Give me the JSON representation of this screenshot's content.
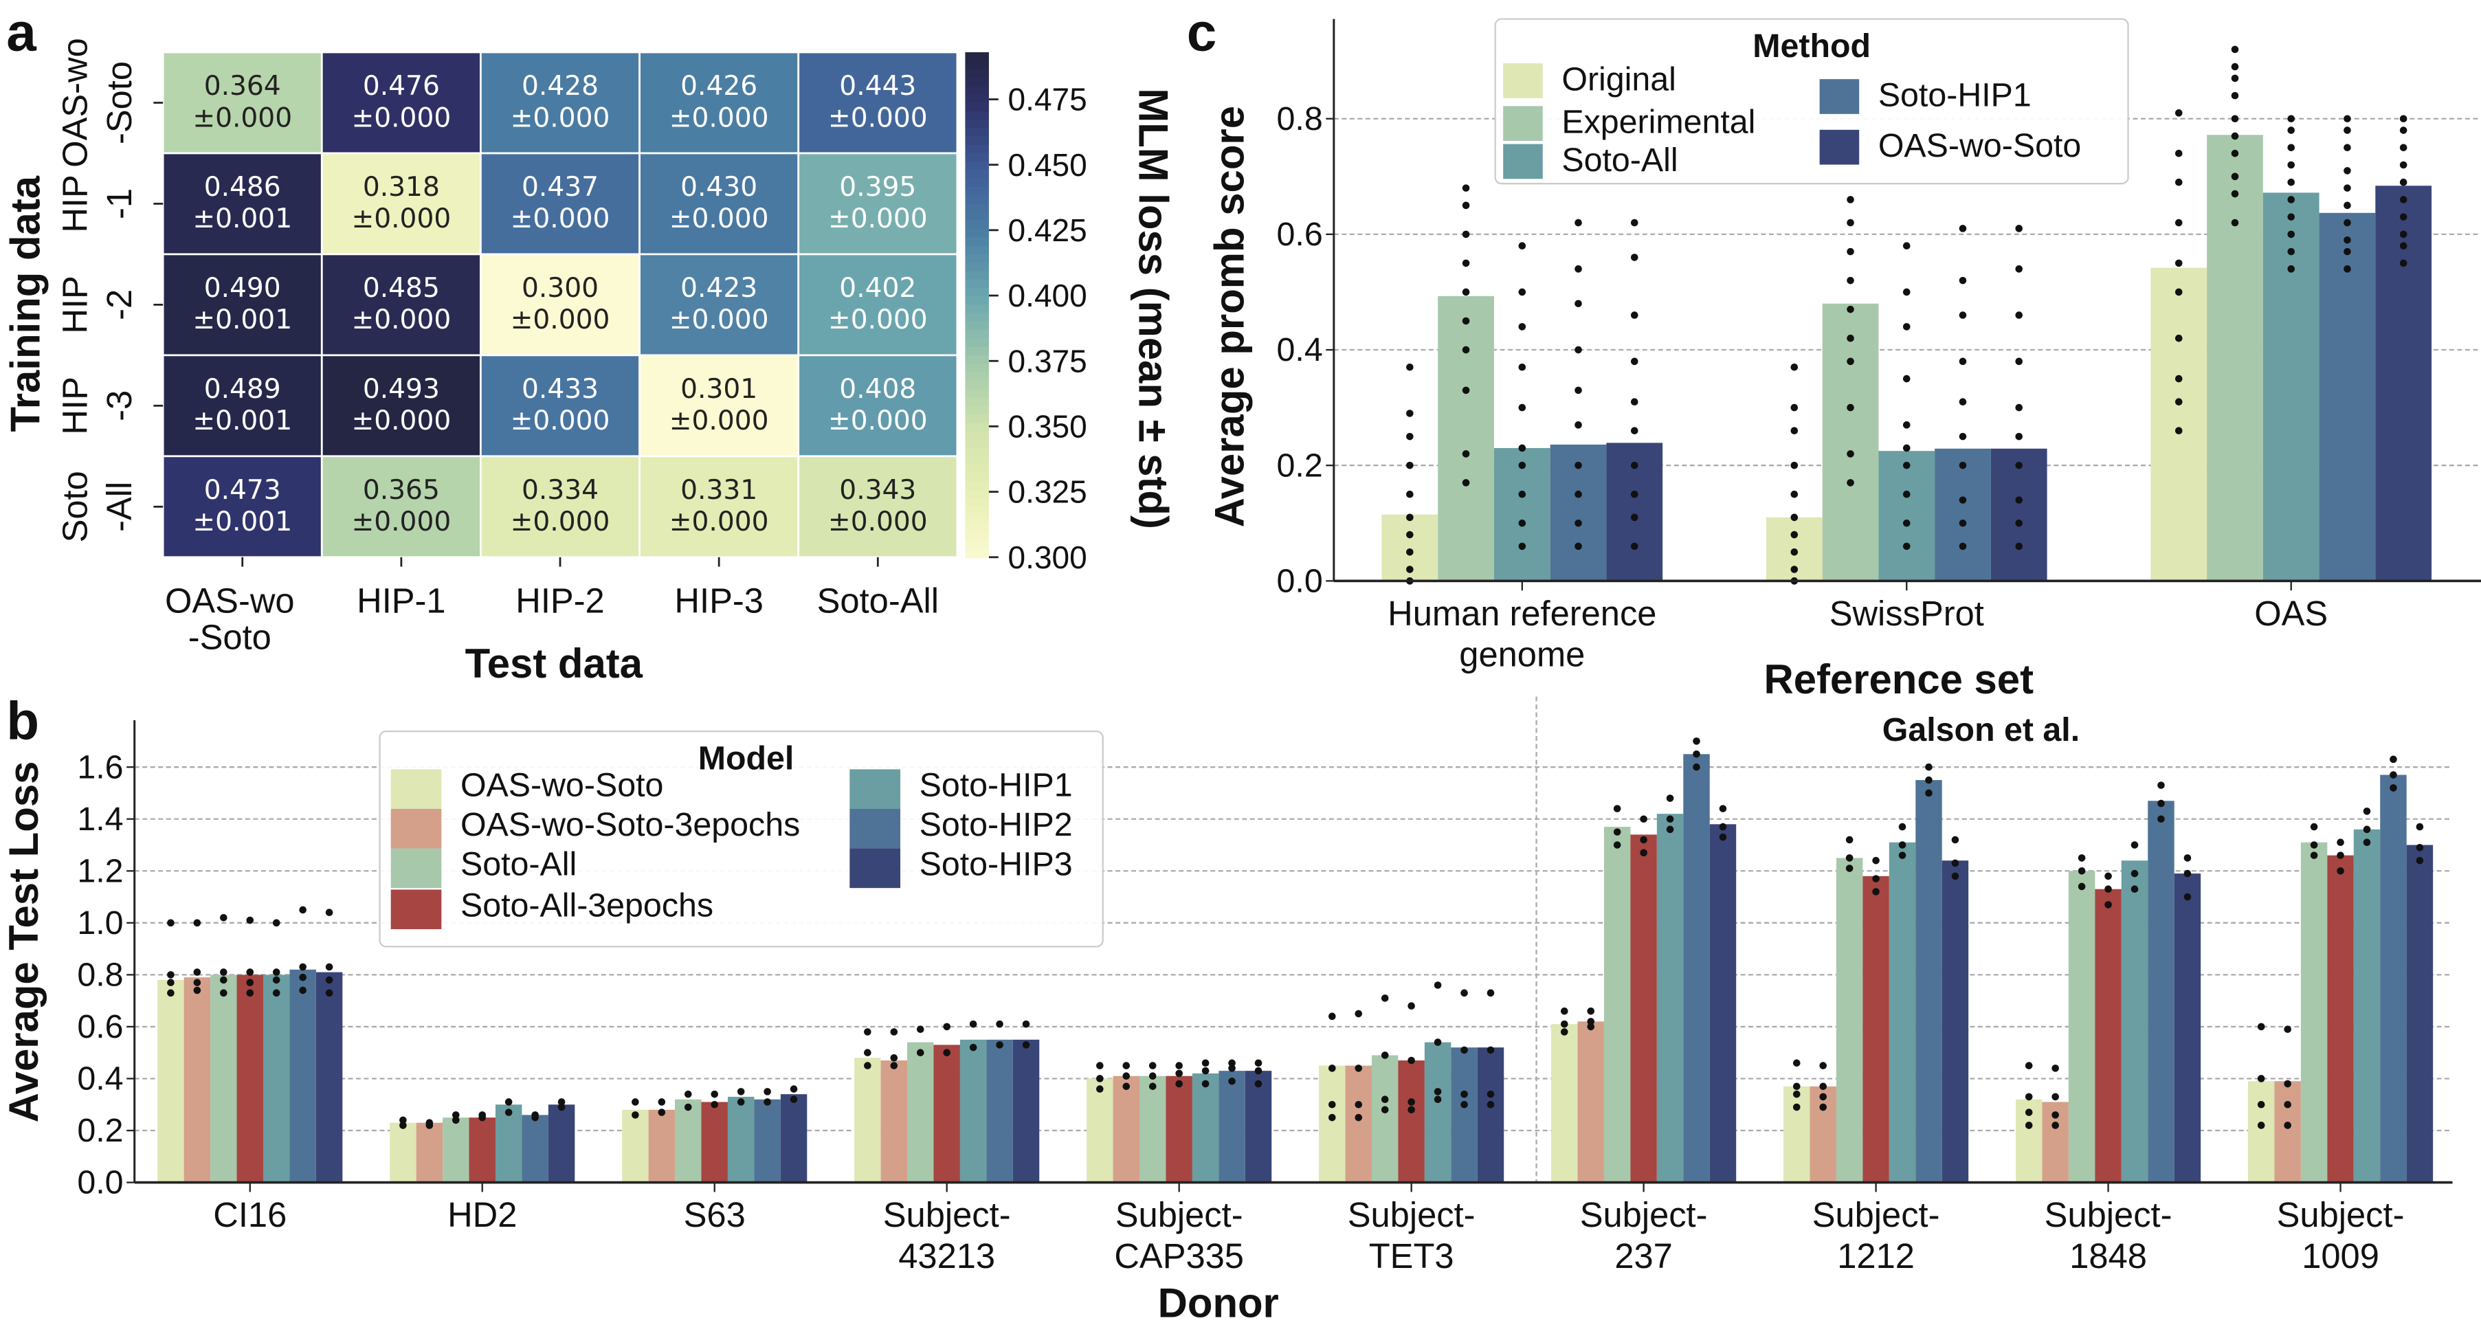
{
  "panels": {
    "a": "a",
    "b": "b",
    "c": "c"
  },
  "chart_data": [
    {
      "id": "a",
      "type": "heatmap",
      "xlabel": "Test data",
      "ylabel": "Training data",
      "colorbar_label": "MLM loss (mean ± std)",
      "colorbar_ticks": [
        "0.300",
        "0.325",
        "0.350",
        "0.375",
        "0.400",
        "0.425",
        "0.450",
        "0.475"
      ],
      "colorbar_range": [
        0.3,
        0.493
      ],
      "colormap": "YlGnBu",
      "columns": [
        [
          "OAS-wo",
          "-Soto"
        ],
        [
          "HIP-1"
        ],
        [
          "HIP-2"
        ],
        [
          "HIP-3"
        ],
        [
          "Soto-All"
        ]
      ],
      "rows": [
        [
          "OAS-wo",
          "-Soto"
        ],
        [
          "HIP",
          "-1"
        ],
        [
          "HIP",
          "-2"
        ],
        [
          "HIP",
          "-3"
        ],
        [
          "Soto",
          "-All"
        ]
      ],
      "values": [
        [
          0.364,
          0.476,
          0.428,
          0.426,
          0.443
        ],
        [
          0.486,
          0.318,
          0.437,
          0.43,
          0.395
        ],
        [
          0.49,
          0.485,
          0.3,
          0.423,
          0.402
        ],
        [
          0.489,
          0.493,
          0.433,
          0.301,
          0.408
        ],
        [
          0.473,
          0.365,
          0.334,
          0.331,
          0.343
        ]
      ],
      "labels": [
        [
          "0.364",
          "0.476",
          "0.428",
          "0.426",
          "0.443"
        ],
        [
          "0.486",
          "0.318",
          "0.437",
          "0.430",
          "0.395"
        ],
        [
          "0.490",
          "0.485",
          "0.300",
          "0.423",
          "0.402"
        ],
        [
          "0.489",
          "0.493",
          "0.433",
          "0.301",
          "0.408"
        ],
        [
          "0.473",
          "0.365",
          "0.334",
          "0.331",
          "0.343"
        ]
      ],
      "std_labels": [
        [
          "±0.000",
          "±0.000",
          "±0.000",
          "±0.000",
          "±0.000"
        ],
        [
          "±0.001",
          "±0.000",
          "±0.000",
          "±0.000",
          "±0.000"
        ],
        [
          "±0.001",
          "±0.000",
          "±0.000",
          "±0.000",
          "±0.000"
        ],
        [
          "±0.001",
          "±0.000",
          "±0.000",
          "±0.000",
          "±0.000"
        ],
        [
          "±0.001",
          "±0.000",
          "±0.000",
          "±0.000",
          "±0.000"
        ]
      ]
    },
    {
      "id": "b",
      "type": "bar",
      "xlabel": "Donor",
      "ylabel": "Average Test Loss",
      "ylim": [
        0,
        1.75
      ],
      "yticks": [
        "0.0",
        "0.2",
        "0.4",
        "0.6",
        "0.8",
        "1.0",
        "1.2",
        "1.4",
        "1.6"
      ],
      "grid": true,
      "legend": {
        "title": "Model",
        "placement": "top-left"
      },
      "annotation": "Galson et al.",
      "categories": [
        [
          "CI16"
        ],
        [
          "HD2"
        ],
        [
          "S63"
        ],
        [
          "Subject-",
          "43213"
        ],
        [
          "Subject-",
          "CAP335"
        ],
        [
          "Subject-",
          "TET3"
        ],
        [
          "Subject-",
          "237"
        ],
        [
          "Subject-",
          "1212"
        ],
        [
          "Subject-",
          "1848"
        ],
        [
          "Subject-",
          "1009"
        ]
      ],
      "series": [
        {
          "name": "OAS-wo-Soto",
          "color": "#dfe7b4",
          "values": [
            0.78,
            0.23,
            0.28,
            0.48,
            0.4,
            0.45,
            0.61,
            0.37,
            0.32,
            0.39
          ]
        },
        {
          "name": "OAS-wo-Soto-3epochs",
          "color": "#d4a08a",
          "values": [
            0.79,
            0.23,
            0.28,
            0.47,
            0.41,
            0.45,
            0.62,
            0.37,
            0.31,
            0.39
          ]
        },
        {
          "name": "Soto-All",
          "color": "#a8c8ab",
          "values": [
            0.8,
            0.25,
            0.32,
            0.54,
            0.41,
            0.49,
            1.37,
            1.25,
            1.2,
            1.31
          ]
        },
        {
          "name": "Soto-All-3epochs",
          "color": "#a64541",
          "values": [
            0.8,
            0.25,
            0.31,
            0.53,
            0.41,
            0.47,
            1.34,
            1.18,
            1.13,
            1.26
          ]
        },
        {
          "name": "Soto-HIP1",
          "color": "#6a9ea2",
          "values": [
            0.8,
            0.3,
            0.33,
            0.55,
            0.42,
            0.54,
            1.42,
            1.31,
            1.24,
            1.36
          ]
        },
        {
          "name": "Soto-HIP2",
          "color": "#4f7396",
          "values": [
            0.82,
            0.26,
            0.32,
            0.55,
            0.43,
            0.52,
            1.65,
            1.55,
            1.47,
            1.57
          ]
        },
        {
          "name": "Soto-HIP3",
          "color": "#3a4577",
          "values": [
            0.81,
            0.3,
            0.34,
            0.55,
            0.43,
            0.52,
            1.38,
            1.24,
            1.19,
            1.3
          ]
        }
      ],
      "points": [
        [
          [
            0.73,
            0.77,
            0.8,
            1.0
          ],
          [
            0.74,
            0.77,
            0.81,
            1.0
          ],
          [
            0.73,
            0.78,
            0.81,
            1.02
          ],
          [
            0.73,
            0.77,
            0.81,
            1.01
          ],
          [
            0.73,
            0.78,
            0.81,
            1.0
          ],
          [
            0.74,
            0.79,
            0.83,
            1.05
          ],
          [
            0.73,
            0.78,
            0.83,
            1.04
          ]
        ],
        [
          [
            0.22,
            0.24
          ],
          [
            0.22,
            0.23
          ],
          [
            0.24,
            0.26
          ],
          [
            0.25,
            0.26
          ],
          [
            0.27,
            0.31
          ],
          [
            0.25,
            0.26
          ],
          [
            0.29,
            0.31
          ]
        ],
        [
          [
            0.26,
            0.31
          ],
          [
            0.27,
            0.31
          ],
          [
            0.29,
            0.34
          ],
          [
            0.3,
            0.34
          ],
          [
            0.31,
            0.35
          ],
          [
            0.31,
            0.35
          ],
          [
            0.32,
            0.36
          ]
        ],
        [
          [
            0.45,
            0.5,
            0.58
          ],
          [
            0.45,
            0.48,
            0.58
          ],
          [
            0.5,
            0.59
          ],
          [
            0.5,
            0.6
          ],
          [
            0.52,
            0.61
          ],
          [
            0.53,
            0.61
          ],
          [
            0.53,
            0.61
          ]
        ],
        [
          [
            0.36,
            0.4,
            0.45
          ],
          [
            0.37,
            0.41,
            0.45
          ],
          [
            0.37,
            0.41,
            0.45
          ],
          [
            0.38,
            0.42,
            0.45
          ],
          [
            0.38,
            0.43,
            0.46
          ],
          [
            0.39,
            0.44,
            0.46
          ],
          [
            0.38,
            0.43,
            0.46
          ]
        ],
        [
          [
            0.25,
            0.3,
            0.44,
            0.64
          ],
          [
            0.25,
            0.3,
            0.44,
            0.65
          ],
          [
            0.28,
            0.32,
            0.49,
            0.71
          ],
          [
            0.28,
            0.31,
            0.47,
            0.68
          ],
          [
            0.32,
            0.35,
            0.54,
            0.76
          ],
          [
            0.3,
            0.34,
            0.51,
            0.73
          ],
          [
            0.3,
            0.34,
            0.51,
            0.73
          ]
        ],
        [
          [
            0.58,
            0.61,
            0.66
          ],
          [
            0.6,
            0.62,
            0.66
          ],
          [
            1.3,
            1.35,
            1.44
          ],
          [
            1.27,
            1.32,
            1.4
          ],
          [
            1.36,
            1.4,
            1.48
          ],
          [
            1.6,
            1.65,
            1.7
          ],
          [
            1.33,
            1.37,
            1.44
          ]
        ],
        [
          [
            0.29,
            0.34,
            0.37,
            0.46
          ],
          [
            0.29,
            0.33,
            0.37,
            0.45
          ],
          [
            1.21,
            1.25,
            1.32
          ],
          [
            1.12,
            1.17,
            1.24
          ],
          [
            1.26,
            1.3,
            1.37
          ],
          [
            1.5,
            1.55,
            1.6
          ],
          [
            1.18,
            1.23,
            1.32
          ]
        ],
        [
          [
            0.22,
            0.27,
            0.33,
            0.45
          ],
          [
            0.22,
            0.26,
            0.33,
            0.44
          ],
          [
            1.14,
            1.2,
            1.25
          ],
          [
            1.07,
            1.13,
            1.18
          ],
          [
            1.13,
            1.19,
            1.3
          ],
          [
            1.4,
            1.46,
            1.53
          ],
          [
            1.1,
            1.19,
            1.25
          ]
        ],
        [
          [
            0.22,
            0.3,
            0.4,
            0.6
          ],
          [
            0.22,
            0.3,
            0.38,
            0.59
          ],
          [
            1.26,
            1.3,
            1.37
          ],
          [
            1.2,
            1.26,
            1.31
          ],
          [
            1.31,
            1.36,
            1.43
          ],
          [
            1.52,
            1.57,
            1.63
          ],
          [
            1.24,
            1.29,
            1.37
          ]
        ]
      ]
    },
    {
      "id": "c",
      "type": "bar",
      "xlabel": "Reference set",
      "ylabel": "Average promb score",
      "ylim": [
        0,
        0.96
      ],
      "yticks": [
        "0.0",
        "0.2",
        "0.4",
        "0.6",
        "0.8"
      ],
      "grid": true,
      "legend": {
        "title": "Method",
        "placement": "top-center"
      },
      "categories": [
        [
          "Human reference",
          "genome"
        ],
        [
          "SwissProt"
        ],
        [
          "OAS"
        ]
      ],
      "series": [
        {
          "name": "Original",
          "color": "#dfe7b4",
          "values": [
            0.115,
            0.11,
            0.542
          ]
        },
        {
          "name": "Experimental",
          "color": "#a8c8ab",
          "values": [
            0.493,
            0.48,
            0.772
          ]
        },
        {
          "name": "Soto-All",
          "color": "#6a9ea2",
          "values": [
            0.23,
            0.225,
            0.672
          ]
        },
        {
          "name": "Soto-HIP1",
          "color": "#4f7396",
          "values": [
            0.236,
            0.229,
            0.637
          ]
        },
        {
          "name": "OAS-wo-Soto",
          "color": "#3a4577",
          "values": [
            0.239,
            0.229,
            0.684
          ]
        }
      ],
      "points": [
        [
          [
            0.0,
            0.02,
            0.05,
            0.08,
            0.11,
            0.15,
            0.2,
            0.25,
            0.29,
            0.37
          ],
          [
            0.17,
            0.22,
            0.33,
            0.4,
            0.45,
            0.5,
            0.55,
            0.6,
            0.65,
            0.68
          ],
          [
            0.06,
            0.1,
            0.15,
            0.2,
            0.23,
            0.3,
            0.37,
            0.44,
            0.5,
            0.58
          ],
          [
            0.06,
            0.1,
            0.15,
            0.2,
            0.27,
            0.33,
            0.4,
            0.48,
            0.54,
            0.62
          ],
          [
            0.06,
            0.11,
            0.15,
            0.2,
            0.26,
            0.31,
            0.38,
            0.46,
            0.56,
            0.62
          ]
        ],
        [
          [
            0.0,
            0.02,
            0.05,
            0.08,
            0.11,
            0.15,
            0.2,
            0.26,
            0.3,
            0.37
          ],
          [
            0.17,
            0.22,
            0.3,
            0.38,
            0.42,
            0.47,
            0.52,
            0.57,
            0.62,
            0.66
          ],
          [
            0.06,
            0.1,
            0.15,
            0.2,
            0.23,
            0.27,
            0.35,
            0.44,
            0.5,
            0.58
          ],
          [
            0.06,
            0.1,
            0.14,
            0.2,
            0.25,
            0.31,
            0.38,
            0.46,
            0.52,
            0.61
          ],
          [
            0.06,
            0.1,
            0.14,
            0.2,
            0.25,
            0.3,
            0.38,
            0.46,
            0.54,
            0.61
          ]
        ],
        [
          [
            0.26,
            0.31,
            0.35,
            0.42,
            0.5,
            0.55,
            0.62,
            0.69,
            0.74,
            0.81
          ],
          [
            0.62,
            0.67,
            0.7,
            0.74,
            0.77,
            0.8,
            0.84,
            0.87,
            0.89,
            0.92
          ],
          [
            0.54,
            0.57,
            0.6,
            0.63,
            0.66,
            0.69,
            0.72,
            0.75,
            0.78,
            0.8
          ],
          [
            0.54,
            0.57,
            0.59,
            0.62,
            0.65,
            0.68,
            0.71,
            0.75,
            0.78,
            0.8
          ],
          [
            0.55,
            0.58,
            0.6,
            0.63,
            0.66,
            0.69,
            0.72,
            0.75,
            0.78,
            0.8
          ]
        ]
      ]
    }
  ]
}
